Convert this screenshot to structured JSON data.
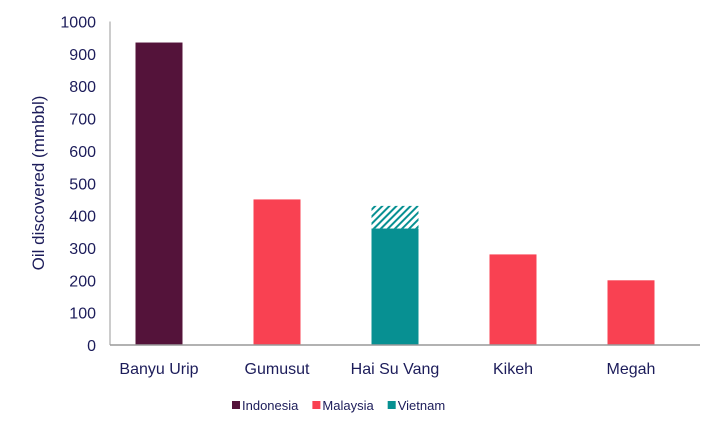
{
  "chart_data": {
    "type": "bar",
    "title": "",
    "xlabel": "",
    "ylabel": "Oil discovered (mmbbl)",
    "ylim": [
      0,
      1000
    ],
    "yticks": [
      0,
      100,
      200,
      300,
      400,
      500,
      600,
      700,
      800,
      900,
      1000
    ],
    "grid": false,
    "legend_placement": "bottom",
    "categories": [
      "Banyu Urip",
      "Gumusut",
      "Hai Su Vang",
      "Kikeh",
      "Megah"
    ],
    "bars": [
      {
        "category": "Banyu Urip",
        "country": "Indonesia",
        "value": 935
      },
      {
        "category": "Gumusut",
        "country": "Malaysia",
        "value": 450
      },
      {
        "category": "Hai Su Vang",
        "country": "Vietnam",
        "value": 360,
        "hatched_upper_to": 430
      },
      {
        "category": "Kikeh",
        "country": "Malaysia",
        "value": 280
      },
      {
        "category": "Megah",
        "country": "Malaysia",
        "value": 200
      }
    ],
    "legend": [
      {
        "name": "Indonesia",
        "color": "#54133a"
      },
      {
        "name": "Malaysia",
        "color": "#f94152"
      },
      {
        "name": "Vietnam",
        "color": "#079092"
      }
    ]
  }
}
